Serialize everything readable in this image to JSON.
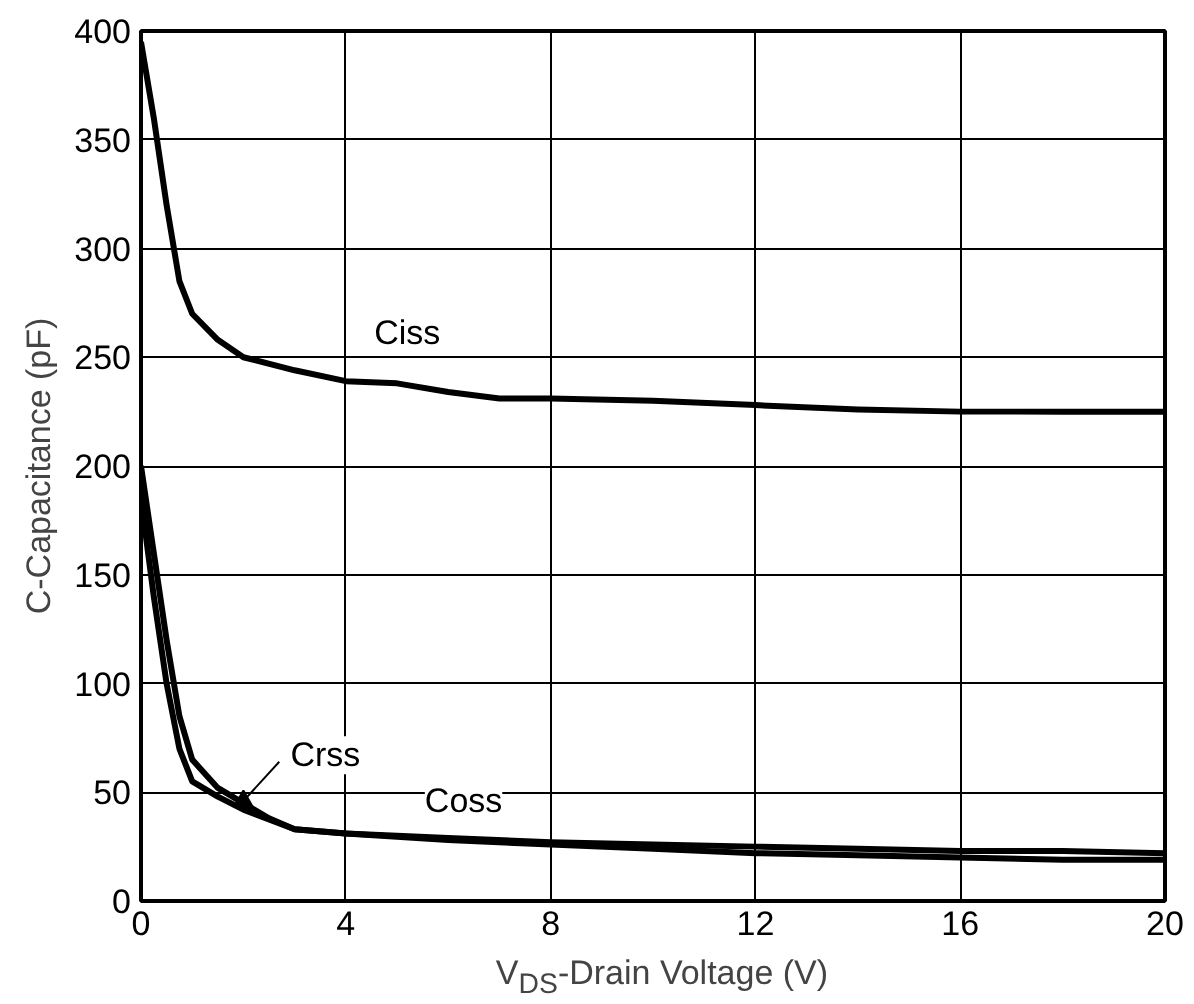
{
  "chart_data": {
    "type": "line",
    "xlabel": "V$_{DS}$-Drain Voltage (V)",
    "ylabel": "C-Capacitance (pF)",
    "xlim": [
      0,
      20
    ],
    "ylim": [
      0,
      400
    ],
    "xticks": [
      0,
      4,
      8,
      12,
      16,
      20
    ],
    "yticks": [
      0,
      50,
      100,
      150,
      200,
      250,
      300,
      350,
      400
    ],
    "grid": true,
    "legend": false,
    "marker": "none",
    "line_style": "solid",
    "series": [
      {
        "name": "Ciss",
        "color": "#000000",
        "x": [
          0,
          0.25,
          0.5,
          0.75,
          1,
          1.5,
          2,
          3,
          4,
          5,
          6,
          7,
          8,
          10,
          12,
          14,
          16,
          18,
          20
        ],
        "values": [
          395,
          360,
          320,
          285,
          270,
          258,
          250,
          244,
          239,
          238,
          234,
          231,
          231,
          230,
          228,
          226,
          225,
          225,
          225
        ]
      },
      {
        "name": "Coss",
        "color": "#000000",
        "x": [
          0,
          0.25,
          0.5,
          0.75,
          1,
          1.5,
          2,
          2.5,
          3,
          4,
          6,
          8,
          10,
          12,
          14,
          16,
          18,
          20
        ],
        "values": [
          200,
          160,
          120,
          85,
          65,
          52,
          45,
          38,
          33,
          31,
          28,
          26,
          24,
          22,
          21,
          20,
          19,
          19
        ]
      },
      {
        "name": "Crss",
        "color": "#000000",
        "x": [
          0,
          0.25,
          0.5,
          0.75,
          1,
          1.5,
          2,
          3,
          4,
          6,
          8,
          10,
          12,
          14,
          16,
          18,
          20
        ],
        "values": [
          185,
          140,
          100,
          70,
          55,
          48,
          42,
          33,
          31,
          29,
          27,
          26,
          25,
          24,
          23,
          23,
          22
        ]
      }
    ]
  }
}
